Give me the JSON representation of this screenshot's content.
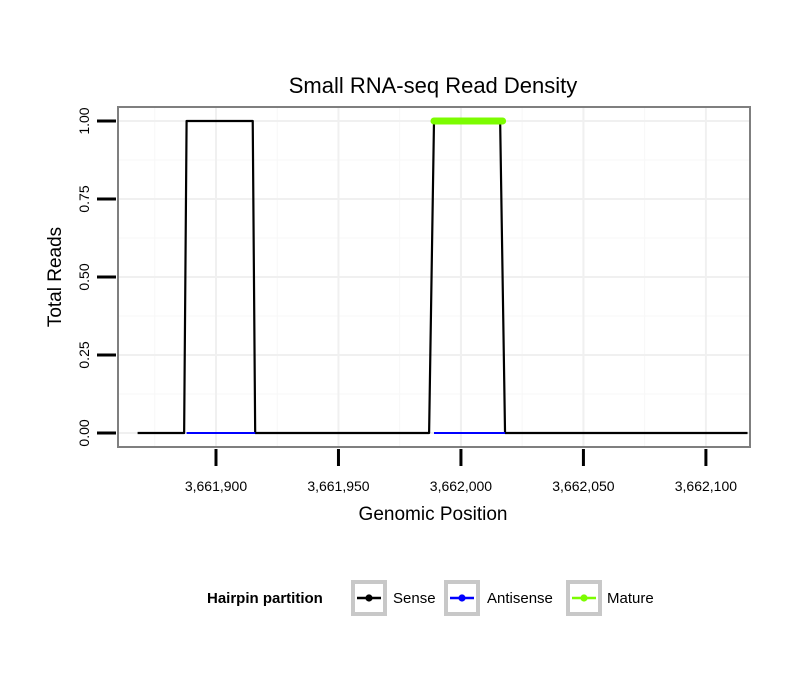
{
  "chart_data": {
    "type": "line",
    "title": "Small RNA-seq Read Density",
    "xlabel": "Genomic Position",
    "ylabel": "Total Reads",
    "xlim": [
      3661860,
      3662118
    ],
    "ylim": [
      -0.045,
      1.045
    ],
    "x_ticks": [
      3661900,
      3661950,
      3662000,
      3662050,
      3662100
    ],
    "x_tick_labels": [
      "3,661,900",
      "3,661,950",
      "3,662,000",
      "3,662,050",
      "3,662,100"
    ],
    "y_ticks": [
      0,
      0.25,
      0.5,
      0.75,
      1.0
    ],
    "y_tick_labels": [
      "0.00",
      "0.25",
      "0.50",
      "0.75",
      "1.00"
    ],
    "grid": true,
    "legend": {
      "title": "Hairpin partition",
      "position": "bottom",
      "entries": [
        "Sense",
        "Antisense",
        "Mature"
      ]
    },
    "series": [
      {
        "name": "Sense",
        "color": "#000000",
        "x": [
          3661868,
          3661887,
          3661888,
          3661915,
          3661916,
          3661987,
          3661989,
          3662016,
          3662018,
          3662117
        ],
        "y": [
          0,
          0,
          1,
          1,
          0,
          0,
          1,
          1,
          0,
          0
        ]
      },
      {
        "name": "Antisense",
        "color": "#0000ff",
        "x": [
          3661888,
          3661916,
          3661989,
          3662018
        ],
        "y": [
          0,
          0,
          0,
          0
        ],
        "segments": [
          [
            0,
            1
          ],
          [
            2,
            3
          ]
        ]
      },
      {
        "name": "Mature",
        "color": "#7cfc00",
        "x": [
          3661989,
          3662017
        ],
        "y": [
          1,
          1
        ]
      }
    ]
  }
}
